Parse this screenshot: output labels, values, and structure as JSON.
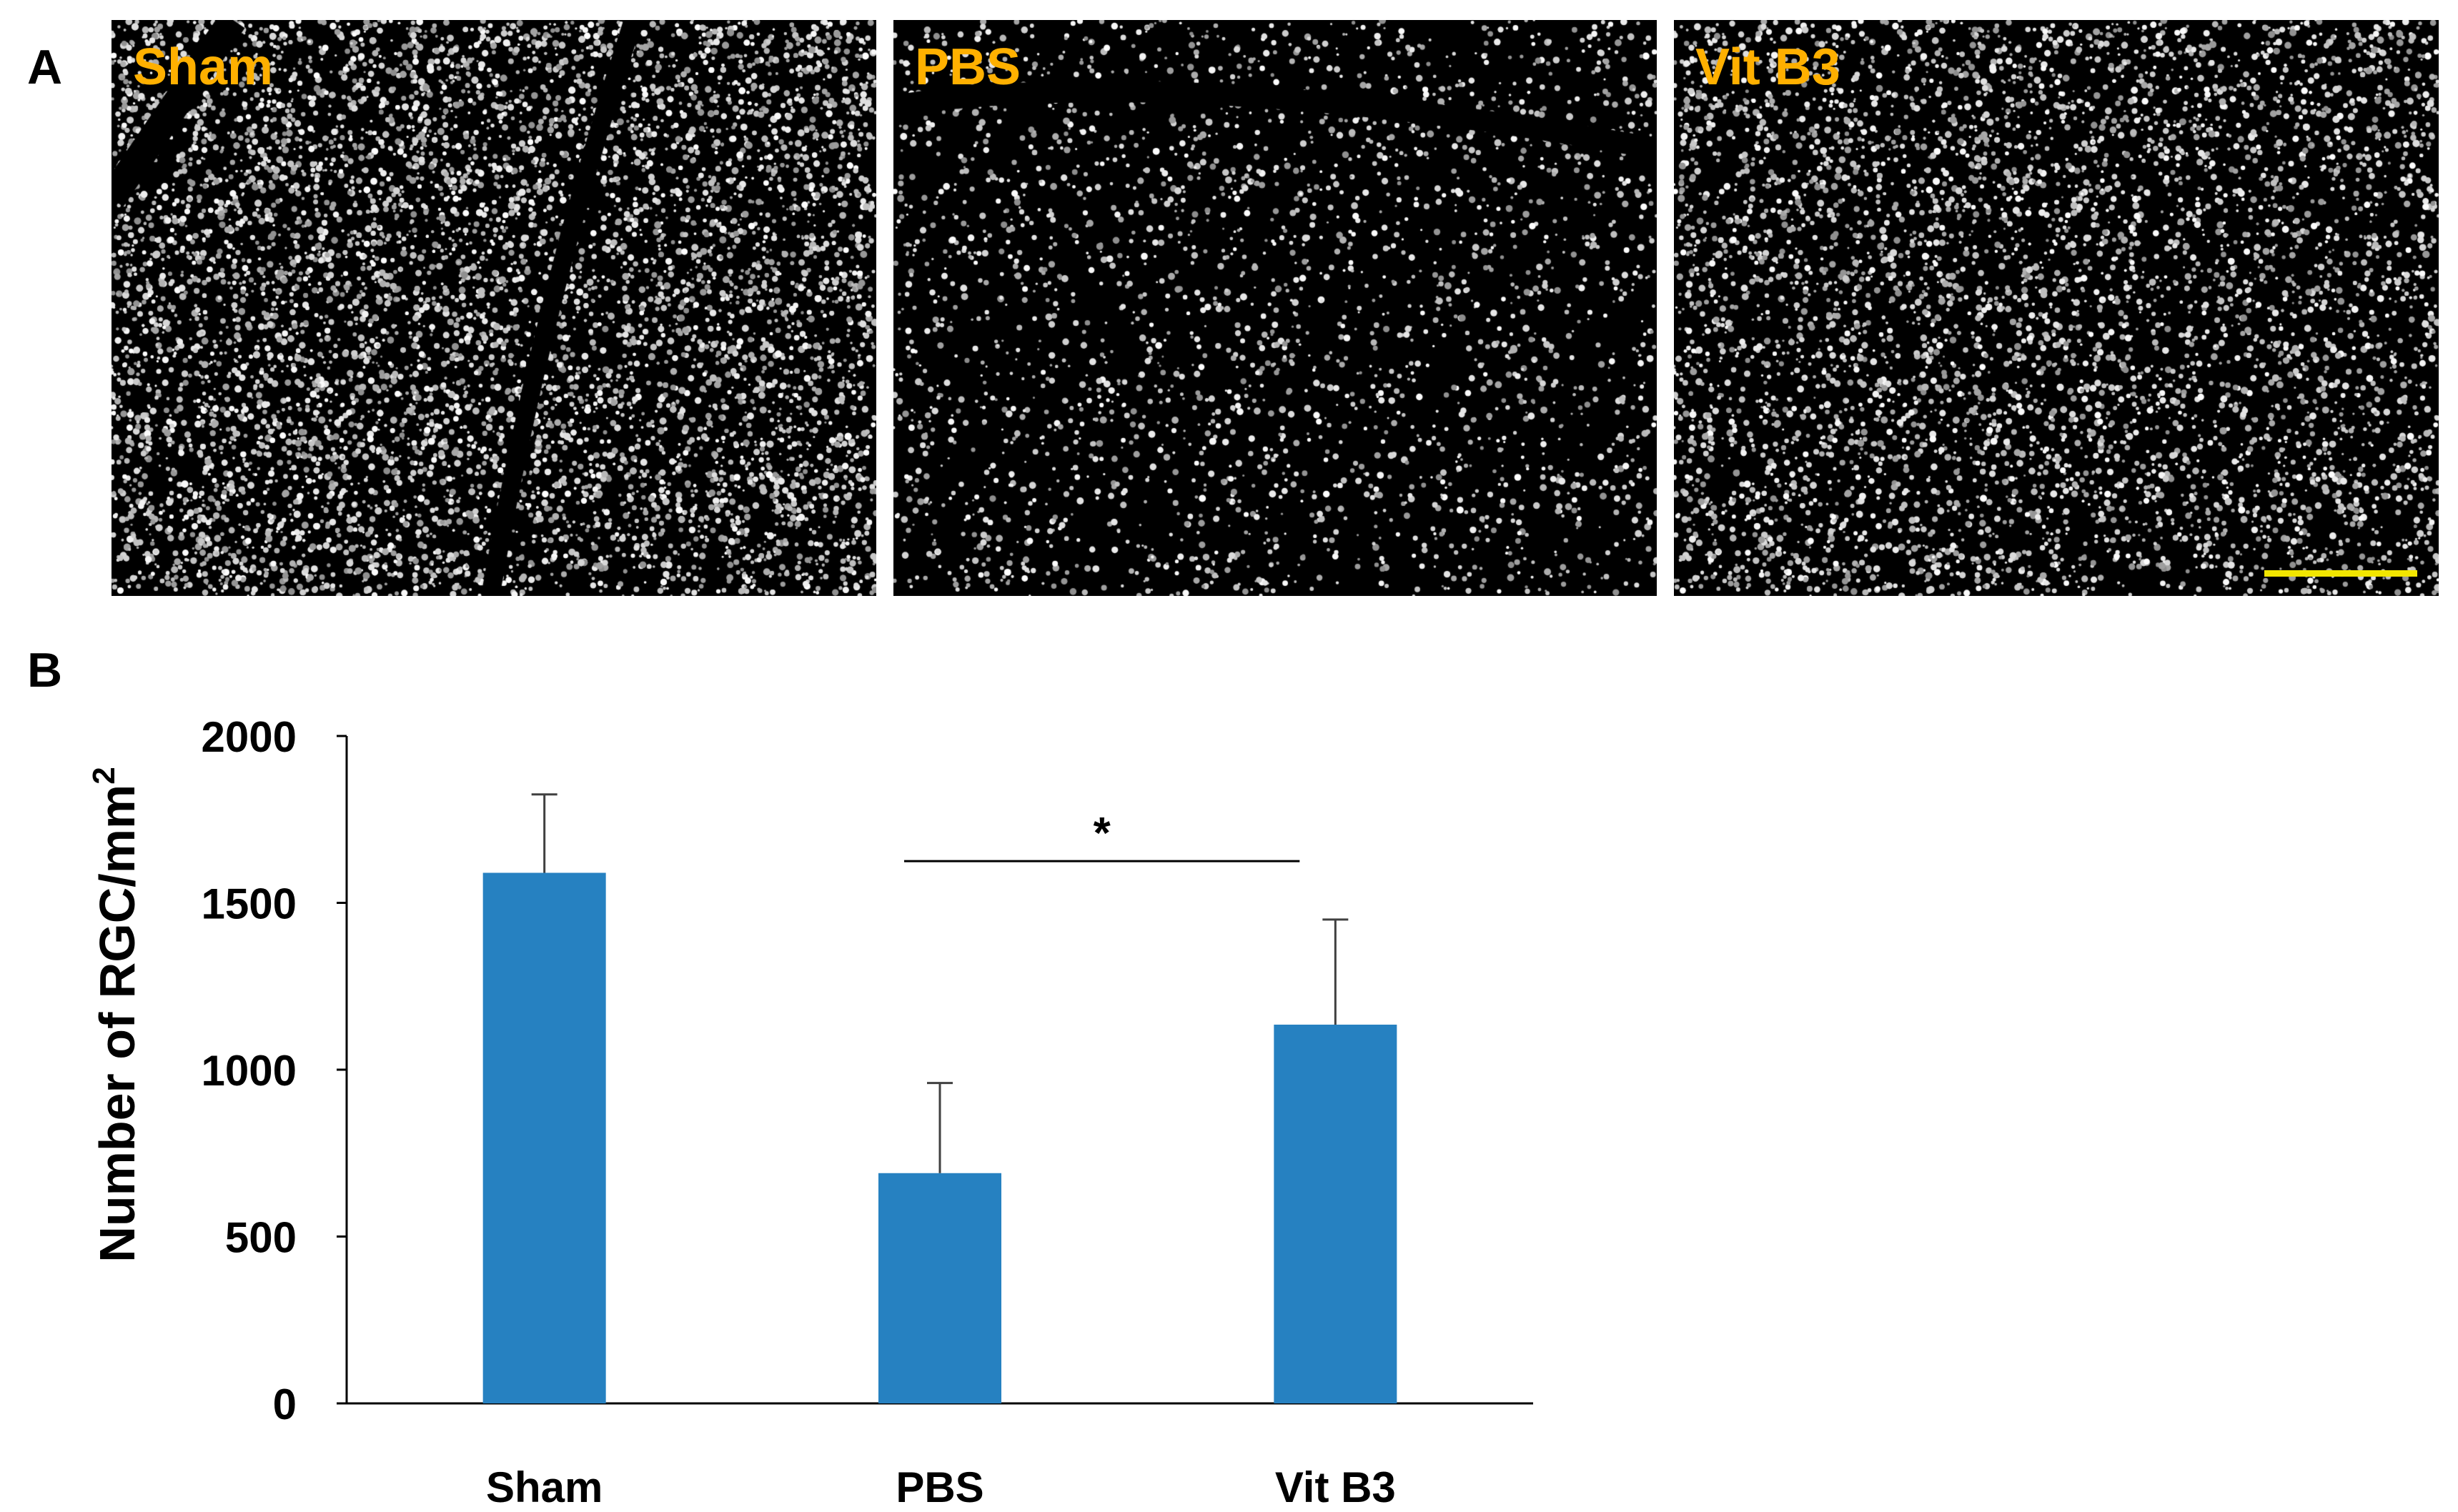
{
  "panels": {
    "a_label": "A",
    "b_label": "B"
  },
  "micrographs": [
    {
      "label": "Sham",
      "density": "high"
    },
    {
      "label": "PBS",
      "density": "low"
    },
    {
      "label": "Vit B3",
      "density": "medium",
      "scale_bar": true
    }
  ],
  "colors": {
    "label_color": "#FFB000",
    "scale_bar": "#F2E600",
    "bar_fill": "#2681C1",
    "axis": "#000000",
    "error_bar": "#404040"
  },
  "chart_data": {
    "type": "bar",
    "categories": [
      "Sham",
      "PBS",
      "Vit B3"
    ],
    "values": [
      1590,
      690,
      1135
    ],
    "errors": [
      235,
      270,
      315
    ],
    "ylabel": "Number of RGC/mm",
    "ylabel_superscript": "2",
    "ylim": [
      0,
      2000
    ],
    "yticks": [
      0,
      500,
      1000,
      1500,
      2000
    ],
    "grid": false,
    "significance": {
      "from": "PBS",
      "to": "Vit B3",
      "symbol": "*"
    }
  }
}
